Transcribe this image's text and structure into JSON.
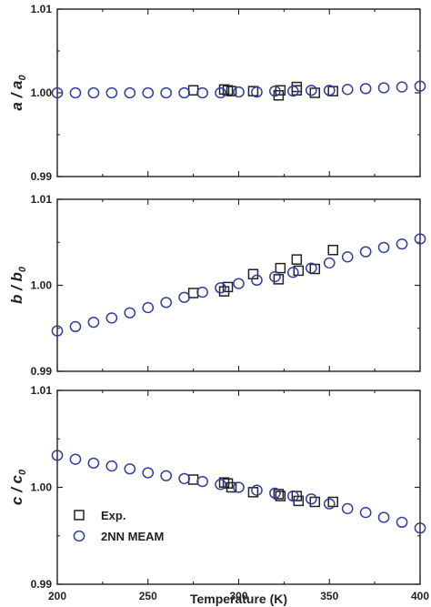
{
  "chart_data": [
    {
      "type": "scatter",
      "ylabel_main": "a / a",
      "ylabel_sub": "0",
      "xlim": [
        200,
        400
      ],
      "ylim": [
        0.99,
        1.01
      ],
      "yticks": [
        "1.01",
        "1.00",
        "0.99"
      ],
      "series": [
        {
          "name": "Exp.",
          "marker": "square",
          "color": "#222222",
          "x": [
            275,
            292,
            294,
            296,
            308,
            322,
            323,
            332,
            332,
            342,
            352
          ],
          "y": [
            1.0003,
            1.0004,
            1.0003,
            1.0002,
            1.0002,
            0.9997,
            1.0003,
            1.0007,
            1.0003,
            1.0,
            1.0002
          ]
        },
        {
          "name": "2NN MEAM",
          "marker": "circle",
          "color": "#2e3f9e",
          "x": [
            200,
            210,
            220,
            230,
            240,
            250,
            260,
            270,
            280,
            290,
            300,
            310,
            320,
            330,
            340,
            350,
            360,
            370,
            380,
            390,
            400
          ],
          "y": [
            1.0,
            1.0,
            1.0,
            1.0,
            1.0,
            1.0,
            1.0,
            1.0,
            1.0,
            1.0,
            1.0001,
            1.0001,
            1.0002,
            1.0002,
            1.0003,
            1.0003,
            1.0004,
            1.0005,
            1.0006,
            1.0007,
            1.0008
          ]
        }
      ]
    },
    {
      "type": "scatter",
      "ylabel_main": "b / b",
      "ylabel_sub": "0",
      "xlim": [
        200,
        400
      ],
      "ylim": [
        0.99,
        1.01
      ],
      "yticks": [
        "1.01",
        "1.00",
        "0.99"
      ],
      "series": [
        {
          "name": "Exp.",
          "marker": "square",
          "color": "#222222",
          "x": [
            275,
            292,
            294,
            308,
            322,
            323,
            332,
            333,
            342,
            352
          ],
          "y": [
            0.9991,
            0.9993,
            0.9998,
            1.0013,
            1.0007,
            1.002,
            1.003,
            1.0017,
            1.0019,
            1.0041
          ]
        },
        {
          "name": "2NN MEAM",
          "marker": "circle",
          "color": "#2e3f9e",
          "x": [
            200,
            210,
            220,
            230,
            240,
            250,
            260,
            270,
            280,
            290,
            300,
            310,
            320,
            330,
            340,
            350,
            360,
            370,
            380,
            390,
            400
          ],
          "y": [
            0.9947,
            0.9952,
            0.9957,
            0.9962,
            0.9968,
            0.9974,
            0.998,
            0.9986,
            0.9992,
            0.9997,
            1.0002,
            1.0006,
            1.001,
            1.0015,
            1.002,
            1.0026,
            1.0033,
            1.0039,
            1.0044,
            1.0048,
            1.0054
          ]
        }
      ]
    },
    {
      "type": "scatter",
      "ylabel_main": "c / c",
      "ylabel_sub": "0",
      "xlim": [
        200,
        400
      ],
      "ylim": [
        0.99,
        1.01
      ],
      "xticks": [
        "200",
        "250",
        "300",
        "350",
        "400"
      ],
      "yticks": [
        "1.01",
        "1.00",
        "0.99"
      ],
      "xlabel": "Temperature (K)",
      "legend": {
        "position": "bottom-left",
        "entries": [
          "Exp.",
          "2NN MEAM"
        ]
      },
      "series": [
        {
          "name": "Exp.",
          "marker": "square",
          "color": "#222222",
          "x": [
            275,
            292,
            294,
            296,
            308,
            322,
            323,
            332,
            333,
            342,
            352
          ],
          "y": [
            1.0008,
            1.0005,
            1.0004,
            1.0,
            0.9995,
            0.9993,
            0.9991,
            0.9991,
            0.9986,
            0.9985,
            0.9985
          ]
        },
        {
          "name": "2NN MEAM",
          "marker": "circle",
          "color": "#2e3f9e",
          "x": [
            200,
            210,
            220,
            230,
            240,
            250,
            260,
            270,
            280,
            290,
            300,
            310,
            320,
            330,
            340,
            350,
            360,
            370,
            380,
            390,
            400
          ],
          "y": [
            1.0033,
            1.0029,
            1.0025,
            1.0022,
            1.0019,
            1.0015,
            1.0012,
            1.0009,
            1.0006,
            1.0003,
            1.0,
            0.9997,
            0.9994,
            0.9991,
            0.9988,
            0.9983,
            0.9978,
            0.9974,
            0.9969,
            0.9964,
            0.9958
          ]
        }
      ]
    }
  ]
}
